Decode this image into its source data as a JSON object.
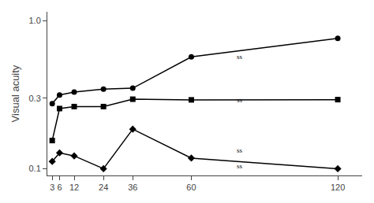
{
  "chart_data": {
    "type": "line",
    "x": [
      3,
      6,
      12,
      24,
      36,
      60,
      120
    ],
    "series": [
      {
        "color": "#000000",
        "marker": "circle",
        "line_style": "solid",
        "values": [
          0.275,
          0.315,
          0.33,
          0.345,
          0.35,
          0.57,
          0.76
        ]
      },
      {
        "color": "#000000",
        "marker": "square",
        "line_style": "solid",
        "values": [
          0.155,
          0.255,
          0.263,
          0.263,
          0.295,
          0.292,
          0.293
        ]
      },
      {
        "color": "#000000",
        "marker": "diamond",
        "line_style": "solid",
        "values": [
          0.112,
          0.128,
          0.122,
          0.1,
          0.185,
          0.118,
          0.1
        ]
      }
    ],
    "ylabel": "Visual acuity",
    "log": "y",
    "xlim": [
      1,
      130
    ],
    "ylim": [
      0.09,
      1.15
    ],
    "xticks": [
      3,
      6,
      12,
      24,
      36,
      60,
      120
    ],
    "yticks": [
      0.1,
      0.3,
      {
        "value": 1.0,
        "label": "1.0"
      }
    ],
    "grid": false,
    "annotations": [
      {
        "text": "ss",
        "x": 78,
        "y": 0.57
      },
      {
        "text": "ss",
        "x": 78,
        "y": 0.292
      },
      {
        "text": "ss",
        "x": 78,
        "y": 0.12272
      },
      {
        "text": "ss",
        "x": 78,
        "y": 0.11328
      }
    ]
  }
}
